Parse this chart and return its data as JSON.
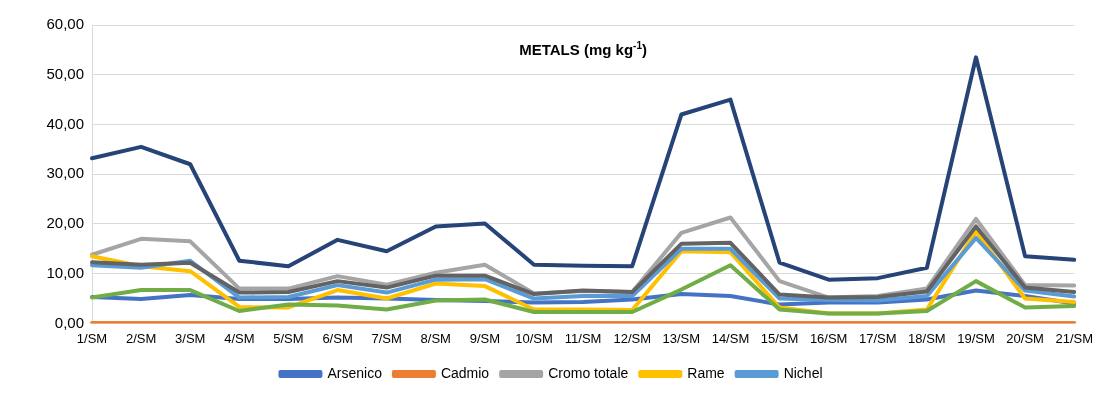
{
  "chart_data": {
    "type": "line",
    "title": "METALS (mg kg$^{-1}$)",
    "categories": [
      "1/SM",
      "2/SM",
      "3/SM",
      "4/SM",
      "5/SM",
      "6/SM",
      "7/SM",
      "8/SM",
      "9/SM",
      "10/SM",
      "11/SM",
      "12/SM",
      "13/SM",
      "14/SM",
      "15/SM",
      "16/SM",
      "17/SM",
      "18/SM",
      "19/SM",
      "20/SM",
      "21/SM"
    ],
    "series": [
      {
        "name": "Arsenico",
        "color": "#4472c4",
        "values": [
          5.3,
          4.9,
          5.7,
          4.9,
          4.9,
          5.2,
          5.0,
          4.7,
          4.5,
          4.2,
          4.3,
          4.8,
          5.9,
          5.5,
          3.8,
          4.2,
          4.2,
          4.8,
          6.6,
          5.5,
          4.0
        ]
      },
      {
        "name": "Cadmio",
        "color": "#ed7d31",
        "values": [
          0.1,
          0.1,
          0.1,
          0.1,
          0.1,
          0.1,
          0.1,
          0.1,
          0.1,
          0.1,
          0.1,
          0.1,
          0.1,
          0.1,
          0.1,
          0.1,
          0.1,
          0.1,
          0.1,
          0.1,
          0.1
        ]
      },
      {
        "name": "Cromo totale",
        "color": "#a5a5a5",
        "values": [
          13.8,
          17.0,
          16.5,
          7.0,
          7.0,
          9.5,
          7.8,
          10.2,
          11.8,
          6.0,
          6.5,
          6.3,
          18.2,
          21.3,
          8.5,
          5.2,
          5.5,
          7.0,
          21.0,
          7.7,
          7.6
        ]
      },
      {
        "name": "Rame",
        "color": "#ffc000",
        "values": [
          13.5,
          11.5,
          10.5,
          3.3,
          3.2,
          6.7,
          5.0,
          8.0,
          7.5,
          2.8,
          2.8,
          2.7,
          14.5,
          14.3,
          3.2,
          2.0,
          2.0,
          2.8,
          18.5,
          5.0,
          4.3
        ]
      },
      {
        "name": "Nichel",
        "color": "#5b9bd5",
        "values": [
          11.7,
          11.2,
          12.6,
          5.2,
          5.3,
          7.7,
          6.2,
          8.8,
          8.9,
          5.0,
          5.5,
          5.5,
          15.0,
          15.0,
          5.0,
          4.7,
          4.6,
          5.5,
          17.2,
          6.6,
          5.4
        ]
      },
      {
        "color": "#70ad47",
        "values": [
          5.2,
          6.7,
          6.7,
          2.5,
          3.8,
          3.6,
          2.8,
          4.6,
          4.8,
          2.3,
          2.3,
          2.3,
          6.8,
          11.7,
          2.8,
          2.0,
          2.0,
          2.5,
          8.5,
          3.2,
          3.5
        ]
      },
      {
        "color": "#264478",
        "values": [
          33.2,
          35.5,
          32.0,
          12.6,
          11.5,
          16.8,
          14.5,
          19.5,
          20.1,
          11.8,
          11.6,
          11.5,
          42.0,
          45.0,
          12.2,
          8.8,
          9.1,
          11.2,
          53.5,
          13.5,
          12.8
        ]
      },
      {
        "color": "#636363",
        "values": [
          12.3,
          11.8,
          12.2,
          6.2,
          6.3,
          8.5,
          7.2,
          9.6,
          9.6,
          5.9,
          6.6,
          6.3,
          16.0,
          16.2,
          5.8,
          5.2,
          5.3,
          6.4,
          19.5,
          7.2,
          6.3
        ]
      }
    ],
    "ylim": [
      0,
      60
    ],
    "yticks": [
      {
        "value": 0,
        "label": "0,00"
      },
      {
        "value": 10,
        "label": "10,00"
      },
      {
        "value": 20,
        "label": "20,00"
      },
      {
        "value": 30,
        "label": "30,00"
      },
      {
        "value": 40,
        "label": "40,00"
      },
      {
        "value": 50,
        "label": "50,00"
      },
      {
        "value": 60,
        "label": "60,00"
      }
    ],
    "grid": "y",
    "legend": "bottom",
    "marker": "none",
    "line_style": "solid"
  }
}
